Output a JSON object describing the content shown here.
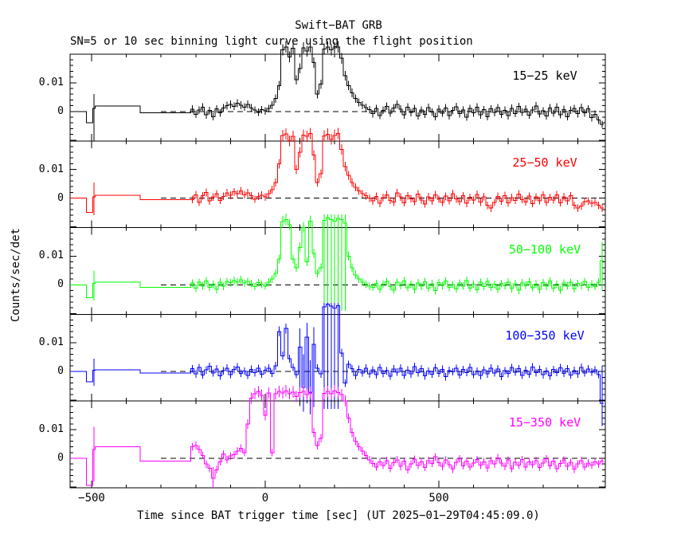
{
  "title": "Swift−BAT GRB",
  "subtitle": "SN=5 or 10 sec binning light curve using the flight position",
  "xlabel": "Time since BAT trigger time [sec] (UT 2025−01−29T04:45:09.0)",
  "ylabel": "Counts/sec/det",
  "x_ticks": {
    "major": [
      -500,
      0,
      500
    ],
    "minor_step": 100,
    "labels": [
      "−500",
      "0",
      "500"
    ]
  },
  "y_ticks": {
    "major_values": [
      100,
      0
    ],
    "major_labels": [
      "0.01",
      "0"
    ],
    "minor_step": 20
  },
  "chart_data": {
    "type": "line",
    "style": "histogram-step-with-error-bars",
    "xlim": [
      -562,
      979
    ],
    "ylim_per_panel": [
      -0.0103,
      0.02
    ],
    "value_scale": 0.0001,
    "bin_start": -215,
    "bin_width": 10,
    "zero_line": {
      "style": "dashed",
      "t_start": -300,
      "value": 0
    },
    "err_base": 13,
    "err_slope": 0.03,
    "grid": false,
    "legend_position": "inside-top-right-per-panel",
    "series": [
      {
        "name": "15−25 keV",
        "color": "#000000",
        "early": [
          [
            -562,
            -515,
            0
          ],
          [
            -515,
            -497,
            -40
          ],
          [
            -497,
            -490,
            10
          ],
          [
            -490,
            -360,
            19
          ],
          [
            -360,
            -215,
            -5
          ]
        ],
        "early_err": {
          "t": -493,
          "lo": -105,
          "hi": 60
        },
        "values": [
          8,
          -10,
          5,
          15,
          -12,
          3,
          -18,
          9,
          -5,
          12,
          20,
          25,
          18,
          28,
          22,
          15,
          25,
          12,
          5,
          -3,
          6,
          2,
          10,
          22,
          45,
          90,
          215,
          225,
          190,
          220,
          110,
          150,
          222,
          210,
          225,
          170,
          60,
          95,
          218,
          224,
          215,
          222,
          225,
          185,
          125,
          90,
          65,
          45,
          32,
          22,
          14,
          6,
          -8,
          10,
          -14,
          4,
          18,
          -6,
          12,
          25,
          8,
          -12,
          15,
          -4,
          10,
          -16,
          5,
          -10,
          14,
          -2,
          -18,
          8,
          -6,
          12,
          -15,
          3,
          16,
          -8,
          5,
          -20,
          10,
          -5,
          15,
          -12,
          6,
          -18,
          9,
          -4,
          13,
          -10,
          4,
          -15,
          11,
          -7,
          17,
          -3,
          8,
          -13,
          5,
          19,
          -9,
          2,
          -16,
          12,
          -6,
          15,
          -11,
          7,
          -18,
          4,
          10,
          -8,
          14,
          -5,
          9,
          -22,
          -10,
          -30,
          -45
        ],
        "err_overrides": []
      },
      {
        "name": "25−50 keV",
        "color": "#ff0000",
        "early": [
          [
            -562,
            -515,
            0
          ],
          [
            -515,
            -497,
            -50
          ],
          [
            -497,
            -490,
            5
          ],
          [
            -490,
            -360,
            10
          ],
          [
            -360,
            -215,
            -5
          ]
        ],
        "early_err": {
          "t": -493,
          "lo": -60,
          "hi": 55
        },
        "values": [
          -5,
          12,
          -15,
          8,
          20,
          -10,
          4,
          15,
          -8,
          6,
          18,
          10,
          22,
          15,
          25,
          12,
          18,
          8,
          -4,
          6,
          10,
          4,
          15,
          30,
          55,
          120,
          218,
          224,
          200,
          216,
          100,
          160,
          220,
          215,
          225,
          150,
          55,
          85,
          217,
          223,
          205,
          219,
          225,
          170,
          110,
          80,
          55,
          38,
          25,
          15,
          8,
          0,
          -10,
          6,
          -18,
          2,
          12,
          -8,
          -14,
          18,
          4,
          -16,
          8,
          -2,
          -12,
          14,
          -6,
          -20,
          5,
          -10,
          12,
          -4,
          -15,
          7,
          -9,
          16,
          -3,
          -12,
          8,
          -18,
          3,
          -7,
          13,
          -14,
          5,
          -25,
          -35,
          -15,
          6,
          -11,
          9,
          -17,
          2,
          -8,
          14,
          -5,
          -13,
          7,
          -19,
          4,
          -9,
          11,
          -15,
          3,
          -6,
          12,
          -16,
          5,
          -10,
          8,
          -25,
          -35,
          -28,
          -12,
          -10,
          -18,
          -15,
          -25,
          -35
        ],
        "err_overrides": []
      },
      {
        "name": "50−100 keV",
        "color": "#00ff00",
        "early": [
          [
            -562,
            -515,
            0
          ],
          [
            -515,
            -497,
            -45
          ],
          [
            -497,
            -490,
            5
          ],
          [
            -490,
            -360,
            10
          ],
          [
            -360,
            -215,
            -8
          ]
        ],
        "early_err": {
          "t": -493,
          "lo": -55,
          "hi": 50
        },
        "values": [
          6,
          -12,
          9,
          -4,
          14,
          -8,
          2,
          -16,
          10,
          -5,
          12,
          8,
          15,
          10,
          18,
          6,
          12,
          4,
          -6,
          8,
          2,
          -4,
          10,
          20,
          40,
          90,
          220,
          228,
          210,
          90,
          60,
          130,
          200,
          80,
          222,
          110,
          40,
          60,
          225,
          235,
          228,
          222,
          232,
          228,
          215,
          100,
          60,
          35,
          20,
          10,
          2,
          -5,
          -8,
          5,
          -15,
          3,
          12,
          -6,
          -18,
          9,
          -3,
          14,
          -10,
          2,
          -16,
          7,
          -5,
          11,
          -12,
          4,
          -20,
          8,
          -2,
          13,
          -9,
          1,
          -14,
          6,
          -4,
          15,
          -11,
          3,
          -17,
          9,
          -6,
          12,
          -8,
          2,
          -15,
          5,
          -3,
          10,
          -13,
          4,
          -19,
          7,
          -1,
          11,
          -10,
          3,
          -16,
          8,
          -5,
          13,
          -12,
          2,
          -18,
          6,
          -4,
          9,
          -14,
          5,
          -2,
          12,
          -9,
          3,
          -6,
          10,
          85
        ],
        "err_overrides": [
          [
            38,
            -90,
            245
          ],
          [
            39,
            -90,
            245
          ],
          [
            40,
            -90,
            245
          ],
          [
            41,
            -90,
            245
          ],
          [
            42,
            -90,
            245
          ],
          [
            43,
            -90,
            245
          ],
          [
            44,
            -90,
            245
          ],
          [
            118,
            -20,
            150
          ]
        ]
      },
      {
        "name": "100−350 keV",
        "color": "#0000ff",
        "early": [
          [
            -562,
            -515,
            0
          ],
          [
            -515,
            -497,
            -35
          ],
          [
            -497,
            -490,
            5
          ],
          [
            -490,
            -360,
            6
          ],
          [
            -360,
            -215,
            -5
          ]
        ],
        "early_err": {
          "t": -493,
          "lo": -50,
          "hi": 45
        },
        "values": [
          10,
          -8,
          14,
          -12,
          6,
          18,
          -5,
          9,
          -15,
          3,
          12,
          -10,
          7,
          16,
          -6,
          2,
          -13,
          8,
          -4,
          11,
          -9,
          5,
          12,
          -6,
          20,
          140,
          55,
          150,
          45,
          15,
          -10,
          85,
          -55,
          120,
          -75,
          95,
          12,
          -8,
          225,
          235,
          228,
          222,
          230,
          65,
          -40,
          25,
          10,
          -14,
          8,
          -5,
          12,
          -8,
          6,
          -11,
          14,
          -7,
          3,
          -16,
          9,
          -2,
          12,
          -13,
          5,
          -8,
          17,
          -4,
          10,
          -15,
          2,
          -9,
          13,
          -6,
          8,
          -18,
          4,
          -1,
          11,
          -12,
          7,
          -3,
          15,
          -10,
          2,
          -14,
          6,
          -8,
          12,
          -5,
          9,
          -17,
          3,
          -7,
          14,
          -2,
          10,
          -13,
          5,
          -9,
          16,
          -4,
          8,
          -11,
          2,
          -15,
          7,
          -3,
          13,
          -6,
          10,
          -12,
          4,
          -8,
          15,
          -5,
          9,
          -2,
          6,
          -10,
          -110
        ],
        "err_overrides": [
          [
            31,
            -120,
            150
          ],
          [
            32,
            -140,
            60
          ],
          [
            33,
            -110,
            170
          ],
          [
            34,
            -150,
            40
          ],
          [
            35,
            -125,
            155
          ],
          [
            38,
            -130,
            240
          ],
          [
            39,
            -130,
            240
          ],
          [
            40,
            -130,
            240
          ],
          [
            41,
            -130,
            240
          ],
          [
            42,
            -130,
            240
          ],
          [
            118,
            -190,
            20
          ]
        ]
      },
      {
        "name": "15−350 keV",
        "color": "#ff00ff",
        "early": [
          [
            -562,
            -515,
            0
          ],
          [
            -515,
            -497,
            -95
          ],
          [
            -497,
            -490,
            30
          ],
          [
            -490,
            -360,
            40
          ],
          [
            -360,
            -215,
            -10
          ]
        ],
        "early_err": {
          "t": -493,
          "lo": -80,
          "hi": 110
        },
        "values": [
          40,
          45,
          30,
          10,
          -20,
          -35,
          -70,
          -40,
          -12,
          15,
          -5,
          8,
          12,
          25,
          35,
          20,
          120,
          210,
          225,
          232,
          220,
          150,
          228,
          20,
          225,
          233,
          228,
          235,
          225,
          231,
          215,
          229,
          234,
          222,
          230,
          90,
          45,
          70,
          227,
          233,
          225,
          235,
          229,
          222,
          200,
          140,
          90,
          60,
          40,
          25,
          10,
          -5,
          -18,
          -30,
          -12,
          -25,
          -8,
          -35,
          -15,
          -5,
          -28,
          -10,
          -40,
          -20,
          -3,
          -25,
          -12,
          -32,
          -8,
          -18,
          5,
          -15,
          -28,
          -6,
          -22,
          -38,
          -14,
          -2,
          -26,
          -10,
          -30,
          -16,
          -4,
          -24,
          -12,
          -34,
          -8,
          -20,
          2,
          -16,
          -28,
          -6,
          -36,
          -14,
          -24,
          -4,
          -30,
          -12,
          -22,
          -8,
          -32,
          -16,
          -2,
          -26,
          -10,
          -36,
          -18,
          -6,
          -28,
          -14,
          -38,
          -20,
          -8,
          -30,
          -16,
          -24,
          -12,
          -20,
          -10
        ],
        "err_overrides": [
          [
            6,
            -105,
            -30
          ]
        ]
      }
    ]
  }
}
